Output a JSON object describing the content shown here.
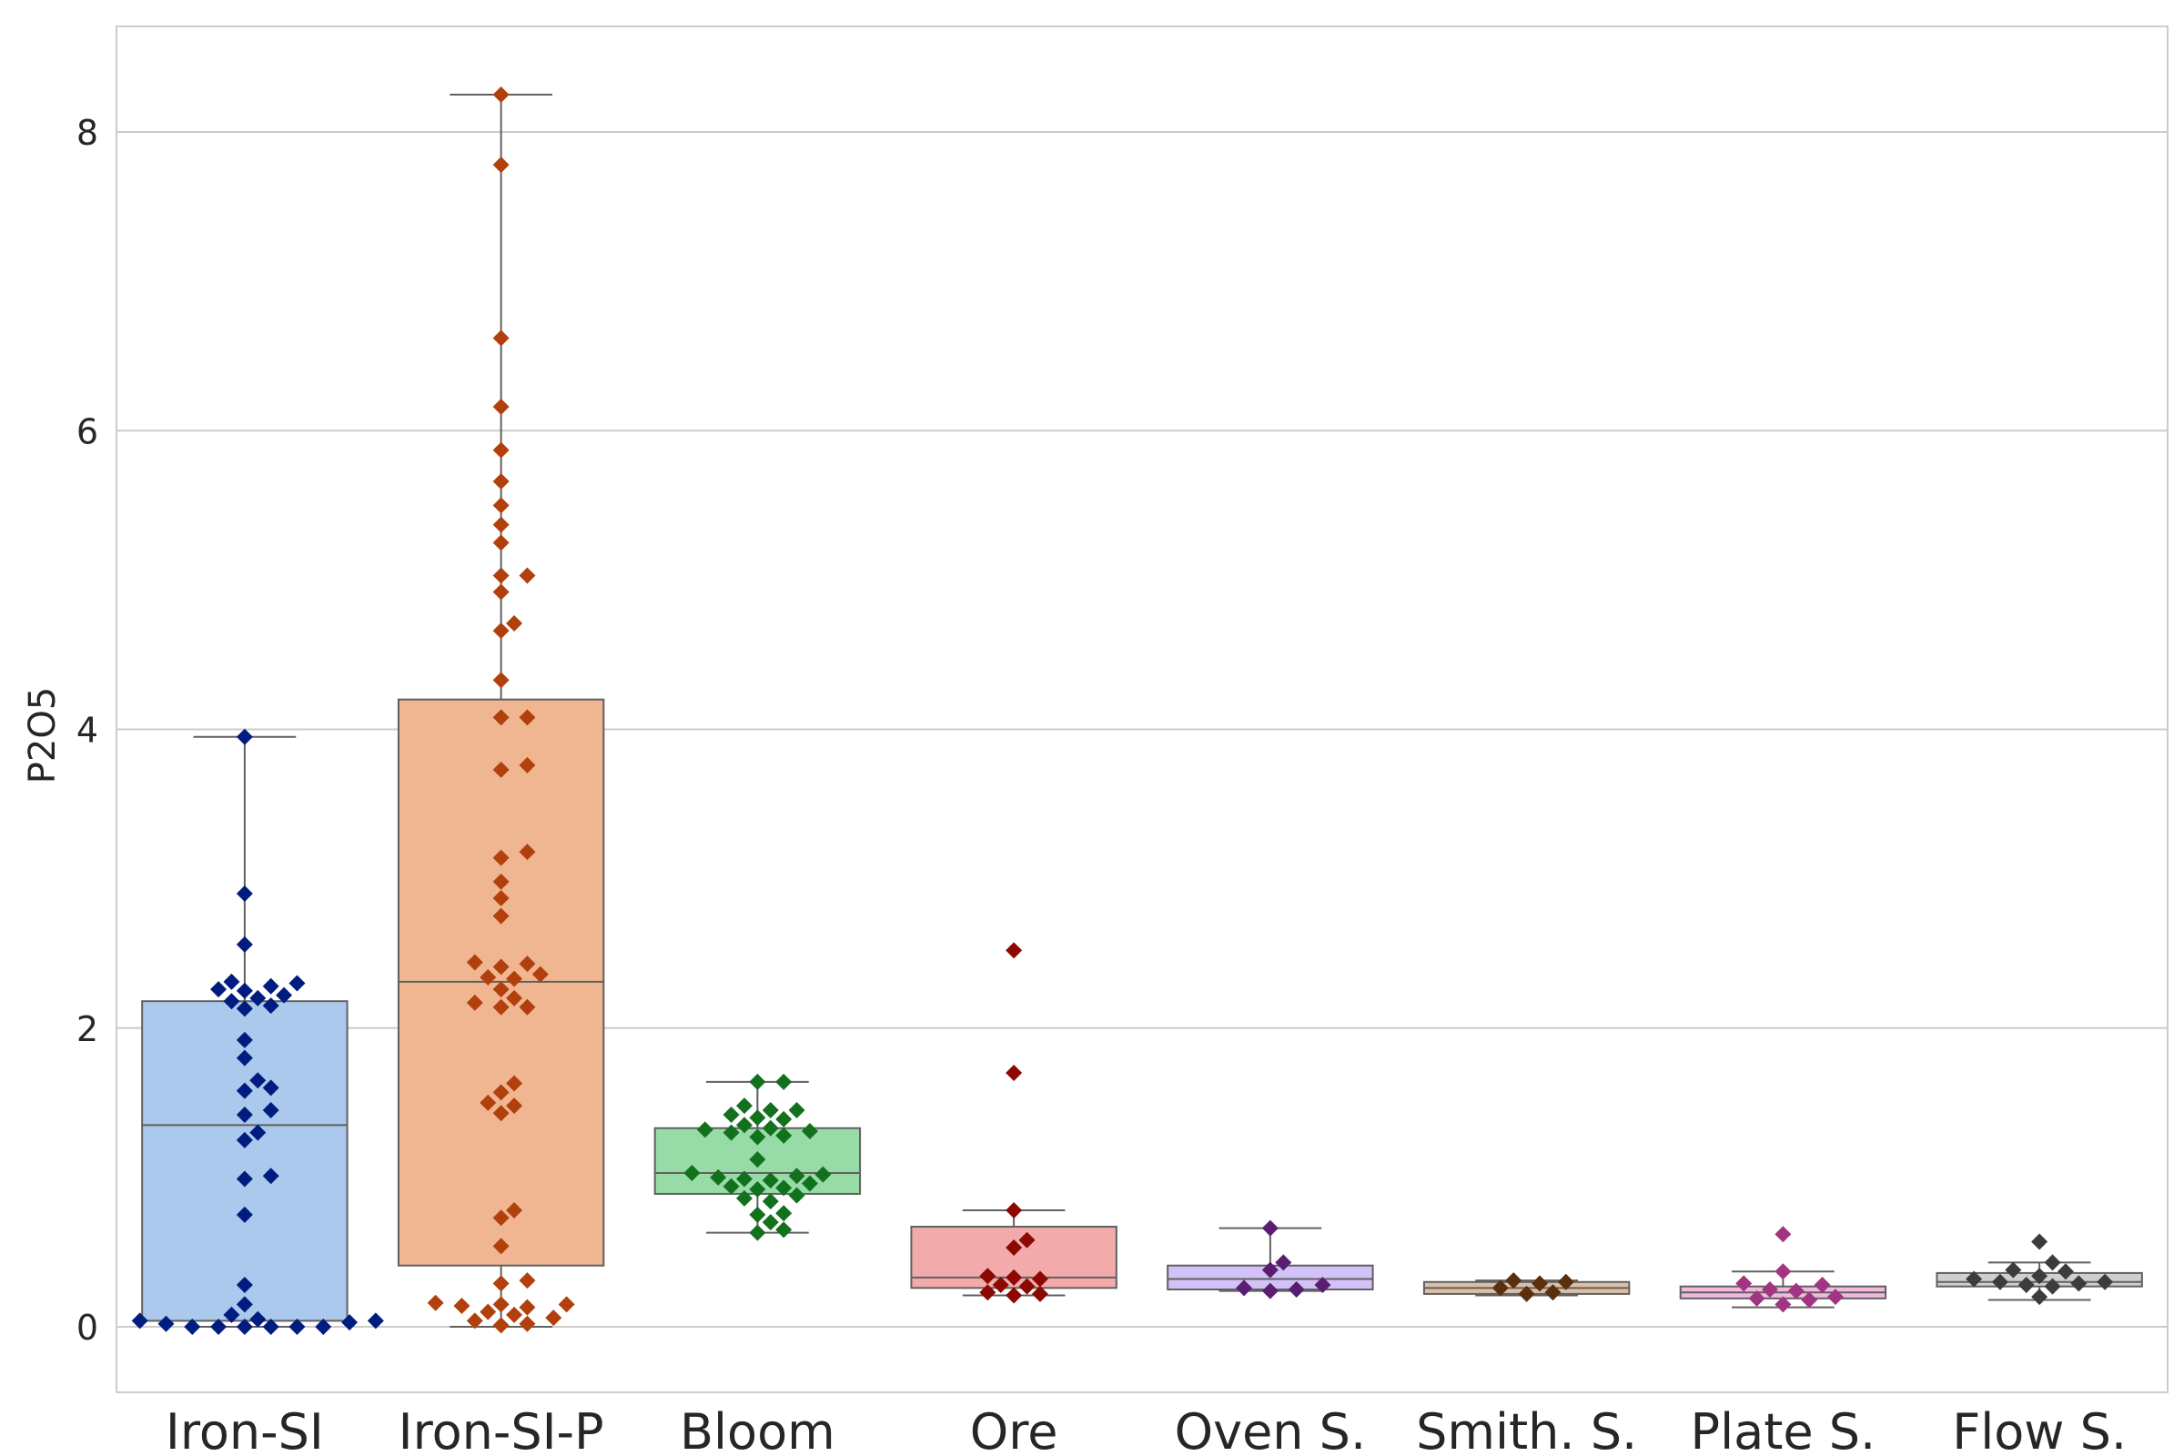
{
  "chart_data": {
    "type": "box+swarm",
    "title": "",
    "xlabel": "",
    "ylabel": "P2O5",
    "ylim": [
      -0.45,
      8.7
    ],
    "yticks": [
      0,
      2,
      4,
      6,
      8
    ],
    "grid": "horizontal",
    "legend": "none",
    "categories": [
      "Iron-SI",
      "Iron-SI-P",
      "Bloom",
      "Ore",
      "Oven S.",
      "Smith. S.",
      "Plate S.",
      "Flow S."
    ],
    "box_colors": [
      "#abc9ec",
      "#f0b692",
      "#97dba6",
      "#f2aaaa",
      "#d3c2f7",
      "#dcbfa4",
      "#f0b9dd",
      "#cfcfcf"
    ],
    "point_colors": [
      "#001c7f",
      "#b1400d",
      "#12711c",
      "#8c0800",
      "#591e71",
      "#592f0d",
      "#a23582",
      "#3c3c3c"
    ],
    "series": [
      {
        "stats": {
          "whislo": 0.0,
          "q1": 0.04,
          "med": 1.35,
          "q3": 2.18,
          "whishi": 3.95
        },
        "points": [
          3.95,
          2.9,
          2.56,
          2.31,
          2.3,
          2.28,
          2.26,
          2.25,
          2.22,
          2.2,
          2.18,
          2.15,
          2.13,
          1.92,
          1.8,
          1.65,
          1.6,
          1.58,
          1.45,
          1.42,
          1.3,
          1.25,
          1.01,
          0.99,
          0.75,
          0.28,
          0.15,
          0.08,
          0.05,
          0.04,
          0.02,
          0.0,
          0.0,
          0.0,
          0.0,
          0.0,
          0.0,
          0.03,
          0.04
        ]
      },
      {
        "stats": {
          "whislo": 0.0,
          "q1": 0.41,
          "med": 2.31,
          "q3": 4.2,
          "whishi": 8.25
        },
        "points": [
          8.25,
          7.78,
          6.62,
          6.16,
          5.87,
          5.66,
          5.5,
          5.37,
          5.25,
          5.03,
          5.03,
          4.92,
          4.71,
          4.66,
          4.33,
          4.08,
          4.08,
          3.76,
          3.73,
          3.18,
          3.14,
          2.98,
          2.87,
          2.75,
          2.44,
          2.43,
          2.41,
          2.36,
          2.34,
          2.33,
          2.26,
          2.2,
          2.17,
          2.14,
          2.14,
          1.63,
          1.57,
          1.5,
          1.48,
          1.43,
          0.78,
          0.73,
          0.54,
          0.31,
          0.29,
          0.16,
          0.15,
          0.15,
          0.14,
          0.13,
          0.1,
          0.08,
          0.06,
          0.04,
          0.02,
          0.01
        ]
      },
      {
        "stats": {
          "whislo": 0.63,
          "q1": 0.89,
          "med": 1.03,
          "q3": 1.33,
          "whishi": 1.64
        },
        "points": [
          1.64,
          1.64,
          1.48,
          1.45,
          1.45,
          1.42,
          1.4,
          1.39,
          1.35,
          1.33,
          1.32,
          1.31,
          1.3,
          1.28,
          1.27,
          1.12,
          1.03,
          1.02,
          1.01,
          1.0,
          0.99,
          0.98,
          0.96,
          0.94,
          0.93,
          0.92,
          0.88,
          0.86,
          0.84,
          0.76,
          0.75,
          0.7,
          0.65,
          0.63
        ]
      },
      {
        "stats": {
          "whislo": 0.21,
          "q1": 0.26,
          "med": 0.33,
          "q3": 0.67,
          "whishi": 0.78
        },
        "points": [
          2.52,
          1.7,
          0.78,
          0.58,
          0.53,
          0.34,
          0.33,
          0.32,
          0.28,
          0.27,
          0.23,
          0.22,
          0.21
        ]
      },
      {
        "stats": {
          "whislo": 0.24,
          "q1": 0.25,
          "med": 0.32,
          "q3": 0.41,
          "whishi": 0.66
        },
        "points": [
          0.66,
          0.43,
          0.38,
          0.28,
          0.26,
          0.25,
          0.24
        ]
      },
      {
        "stats": {
          "whislo": 0.21,
          "q1": 0.22,
          "med": 0.26,
          "q3": 0.3,
          "whishi": 0.31
        },
        "points": [
          0.31,
          0.3,
          0.29,
          0.26,
          0.23,
          0.22
        ]
      },
      {
        "stats": {
          "whislo": 0.13,
          "q1": 0.19,
          "med": 0.23,
          "q3": 0.27,
          "whishi": 0.37
        },
        "points": [
          0.62,
          0.37,
          0.29,
          0.28,
          0.25,
          0.24,
          0.2,
          0.19,
          0.18,
          0.15
        ]
      },
      {
        "stats": {
          "whislo": 0.18,
          "q1": 0.27,
          "med": 0.3,
          "q3": 0.36,
          "whishi": 0.43
        },
        "points": [
          0.57,
          0.43,
          0.38,
          0.37,
          0.34,
          0.32,
          0.3,
          0.3,
          0.29,
          0.28,
          0.27,
          0.2
        ]
      }
    ]
  }
}
